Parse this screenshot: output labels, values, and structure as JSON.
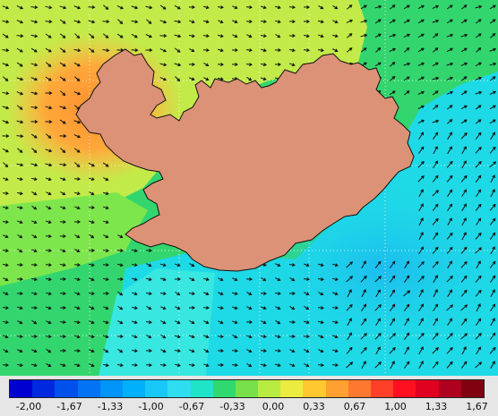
{
  "map": {
    "land_color": "#dc9276",
    "coastline_color": "#111111",
    "grid_color": "#ffffff",
    "vector_color": "#111111",
    "field_colors": {
      "green": "#33d66e",
      "light_green": "#7de64c",
      "yellow_green": "#c2eb49",
      "orange": "#ffa83a",
      "light_orange": "#ffc246",
      "cyan": "#1ed9e6",
      "light_cyan": "#37e7e0",
      "sky": "#1cbcef"
    }
  },
  "legend": {
    "colors": [
      "#0000d0",
      "#0028e0",
      "#0050ec",
      "#0074f4",
      "#0094f8",
      "#00b0fc",
      "#18c8f8",
      "#30dcf0",
      "#20e4c8",
      "#30d870",
      "#78e048",
      "#b8ec40",
      "#ecec40",
      "#ffc830",
      "#ffa030",
      "#ff7830",
      "#ff4028",
      "#ff1020",
      "#e00020",
      "#b00020",
      "#800010"
    ],
    "ticks": [
      "-2,00",
      "-1,67",
      "-1,33",
      "-1,00",
      "-0,67",
      "-0,33",
      "0,00",
      "0,33",
      "0,67",
      "1,00",
      "1,33",
      "1,67"
    ]
  }
}
